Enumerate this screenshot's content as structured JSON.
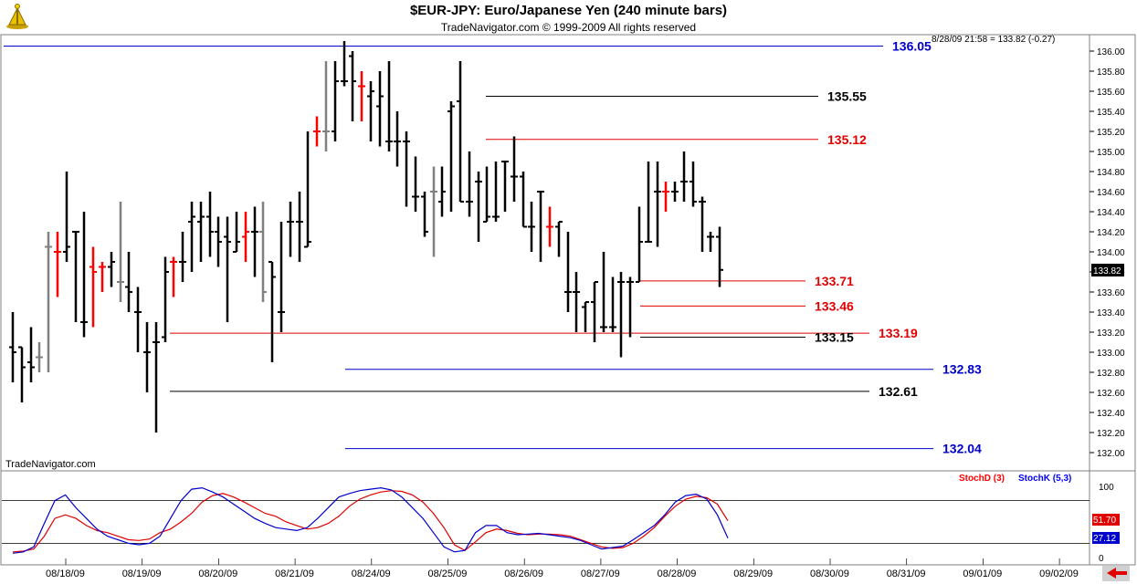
{
  "header": {
    "title": "$EUR-JPY:  Euro/Japanese Yen  (240 minute bars)",
    "subtitle": "TradeNavigator.com © 1999-2009 All rights reserved",
    "quote": "8/28/09 21:58 = 133.82 (-0.27)",
    "watermark": "TradeNavigator.com",
    "last_price": "133.82"
  },
  "colors": {
    "up_bar": "#000000",
    "red_bar": "#ff0000",
    "gray_bar": "#808080",
    "blue_line": "#0000cc",
    "red_line": "#e00000",
    "black_line": "#000000",
    "stoch_d": "#ff0000",
    "stoch_k": "#0000ff"
  },
  "chart_data": [
    {
      "type": "ohlc",
      "title": "$EUR-JPY:  Euro/Japanese Yen  (240 minute bars)",
      "y_ticks": [
        132.0,
        132.2,
        132.4,
        132.6,
        132.8,
        133.0,
        133.2,
        133.4,
        133.6,
        133.8,
        134.0,
        134.2,
        134.4,
        134.6,
        134.8,
        135.0,
        135.2,
        135.4,
        135.6,
        135.8,
        136.0
      ],
      "ylim": [
        131.9,
        136.2
      ],
      "x_labels": [
        "08/18/09",
        "08/19/09",
        "08/20/09",
        "08/21/09",
        "08/24/09",
        "08/25/09",
        "08/26/09",
        "08/27/09",
        "08/28/09",
        "08/29/09",
        "08/30/09",
        "08/31/09",
        "09/01/09",
        "09/02/09"
      ],
      "bars": [
        {
          "o": 133.05,
          "h": 133.4,
          "l": 132.7,
          "c": 133.0,
          "col": "k"
        },
        {
          "o": 133.05,
          "h": 133.05,
          "l": 132.5,
          "c": 132.85,
          "col": "k"
        },
        {
          "o": 132.9,
          "h": 133.25,
          "l": 132.7,
          "c": 132.85,
          "col": "k"
        },
        {
          "o": 132.95,
          "h": 133.1,
          "l": 132.8,
          "c": 132.95,
          "col": "g"
        },
        {
          "o": 134.05,
          "h": 134.2,
          "l": 132.8,
          "c": 134.05,
          "col": "g"
        },
        {
          "o": 134.0,
          "h": 134.2,
          "l": 133.55,
          "c": 134.0,
          "col": "r"
        },
        {
          "o": 134.0,
          "h": 134.8,
          "l": 133.9,
          "c": 134.05,
          "col": "k"
        },
        {
          "o": 134.2,
          "h": 134.2,
          "l": 133.3,
          "c": 134.2,
          "col": "k"
        },
        {
          "o": 133.3,
          "h": 134.4,
          "l": 133.15,
          "c": 133.3,
          "col": "k"
        },
        {
          "o": 133.85,
          "h": 134.05,
          "l": 133.25,
          "c": 133.8,
          "col": "r"
        },
        {
          "o": 133.85,
          "h": 133.9,
          "l": 133.6,
          "c": 133.85,
          "col": "r"
        },
        {
          "o": 133.85,
          "h": 134.0,
          "l": 133.65,
          "c": 133.9,
          "col": "k"
        },
        {
          "o": 133.7,
          "h": 134.5,
          "l": 133.5,
          "c": 133.7,
          "col": "g"
        },
        {
          "o": 133.65,
          "h": 134.0,
          "l": 133.4,
          "c": 133.6,
          "col": "k"
        },
        {
          "o": 133.4,
          "h": 133.65,
          "l": 133.0,
          "c": 133.4,
          "col": "k"
        },
        {
          "o": 133.0,
          "h": 133.3,
          "l": 132.6,
          "c": 133.0,
          "col": "k"
        },
        {
          "o": 133.1,
          "h": 133.3,
          "l": 132.2,
          "c": 133.1,
          "col": "k"
        },
        {
          "o": 133.15,
          "h": 133.95,
          "l": 133.1,
          "c": 133.8,
          "col": "k"
        },
        {
          "o": 133.9,
          "h": 133.95,
          "l": 133.55,
          "c": 133.9,
          "col": "r"
        },
        {
          "o": 133.9,
          "h": 134.2,
          "l": 133.7,
          "c": 133.9,
          "col": "k"
        },
        {
          "o": 134.3,
          "h": 134.5,
          "l": 133.8,
          "c": 134.35,
          "col": "k"
        },
        {
          "o": 134.3,
          "h": 134.5,
          "l": 133.9,
          "c": 134.35,
          "col": "k"
        },
        {
          "o": 134.35,
          "h": 134.6,
          "l": 133.95,
          "c": 134.2,
          "col": "k"
        },
        {
          "o": 134.2,
          "h": 134.35,
          "l": 133.85,
          "c": 134.1,
          "col": "k"
        },
        {
          "o": 134.15,
          "h": 134.35,
          "l": 133.3,
          "c": 134.1,
          "col": "k"
        },
        {
          "o": 134.0,
          "h": 134.4,
          "l": 134.0,
          "c": 134.1,
          "col": "k"
        },
        {
          "o": 134.15,
          "h": 134.4,
          "l": 133.9,
          "c": 134.2,
          "col": "r"
        },
        {
          "o": 134.2,
          "h": 134.45,
          "l": 133.75,
          "c": 134.2,
          "col": "k"
        },
        {
          "o": 134.2,
          "h": 134.5,
          "l": 133.5,
          "c": 133.6,
          "col": "g"
        },
        {
          "o": 133.9,
          "h": 133.9,
          "l": 132.9,
          "c": 133.75,
          "col": "k"
        },
        {
          "o": 133.4,
          "h": 134.3,
          "l": 133.2,
          "c": 133.4,
          "col": "k"
        },
        {
          "o": 134.3,
          "h": 134.5,
          "l": 133.95,
          "c": 134.3,
          "col": "k"
        },
        {
          "o": 134.3,
          "h": 134.6,
          "l": 133.9,
          "c": 134.3,
          "col": "k"
        },
        {
          "o": 134.05,
          "h": 135.2,
          "l": 134.05,
          "c": 134.1,
          "col": "k"
        },
        {
          "o": 135.2,
          "h": 135.35,
          "l": 135.05,
          "c": 135.2,
          "col": "r"
        },
        {
          "o": 135.2,
          "h": 135.9,
          "l": 135.0,
          "c": 135.2,
          "col": "g"
        },
        {
          "o": 135.2,
          "h": 135.9,
          "l": 135.1,
          "c": 135.7,
          "col": "k"
        },
        {
          "o": 135.7,
          "h": 136.1,
          "l": 135.65,
          "c": 135.7,
          "col": "k"
        },
        {
          "o": 135.95,
          "h": 136.0,
          "l": 135.3,
          "c": 135.7,
          "col": "k"
        },
        {
          "o": 135.65,
          "h": 135.8,
          "l": 135.3,
          "c": 135.65,
          "col": "r"
        },
        {
          "o": 135.55,
          "h": 135.7,
          "l": 135.1,
          "c": 135.6,
          "col": "k"
        },
        {
          "o": 135.45,
          "h": 135.8,
          "l": 135.05,
          "c": 135.55,
          "col": "k"
        },
        {
          "o": 135.1,
          "h": 135.9,
          "l": 135.0,
          "c": 135.1,
          "col": "k"
        },
        {
          "o": 135.1,
          "h": 135.4,
          "l": 134.85,
          "c": 135.1,
          "col": "k"
        },
        {
          "o": 135.1,
          "h": 135.2,
          "l": 134.45,
          "c": 135.1,
          "col": "k"
        },
        {
          "o": 134.55,
          "h": 134.95,
          "l": 134.4,
          "c": 134.55,
          "col": "k"
        },
        {
          "o": 134.55,
          "h": 134.6,
          "l": 134.15,
          "c": 134.2,
          "col": "k"
        },
        {
          "o": 134.6,
          "h": 134.85,
          "l": 133.95,
          "c": 134.6,
          "col": "g"
        },
        {
          "o": 134.5,
          "h": 134.85,
          "l": 134.35,
          "c": 134.6,
          "col": "k"
        },
        {
          "o": 135.4,
          "h": 135.5,
          "l": 134.4,
          "c": 135.45,
          "col": "k"
        },
        {
          "o": 135.5,
          "h": 135.9,
          "l": 134.5,
          "c": 134.5,
          "col": "k"
        },
        {
          "o": 134.5,
          "h": 135.0,
          "l": 134.35,
          "c": 134.5,
          "col": "k"
        },
        {
          "o": 134.7,
          "h": 134.8,
          "l": 134.1,
          "c": 134.7,
          "col": "k"
        },
        {
          "o": 134.3,
          "h": 134.85,
          "l": 134.3,
          "c": 134.35,
          "col": "k"
        },
        {
          "o": 134.35,
          "h": 134.9,
          "l": 134.3,
          "c": 134.35,
          "col": "k"
        },
        {
          "o": 134.9,
          "h": 134.9,
          "l": 134.4,
          "c": 134.9,
          "col": "k"
        },
        {
          "o": 134.75,
          "h": 135.15,
          "l": 134.5,
          "c": 134.75,
          "col": "k"
        },
        {
          "o": 134.75,
          "h": 134.8,
          "l": 134.25,
          "c": 134.25,
          "col": "k"
        },
        {
          "o": 134.25,
          "h": 134.5,
          "l": 134.0,
          "c": 134.25,
          "col": "k"
        },
        {
          "o": 134.6,
          "h": 134.6,
          "l": 133.9,
          "c": 134.6,
          "col": "k"
        },
        {
          "o": 134.25,
          "h": 134.45,
          "l": 134.05,
          "c": 134.25,
          "col": "r"
        },
        {
          "o": 134.25,
          "h": 134.3,
          "l": 133.95,
          "c": 134.3,
          "col": "k"
        },
        {
          "o": 133.6,
          "h": 134.2,
          "l": 133.4,
          "c": 133.6,
          "col": "k"
        },
        {
          "o": 133.6,
          "h": 133.8,
          "l": 133.2,
          "c": 133.6,
          "col": "k"
        },
        {
          "o": 133.45,
          "h": 133.5,
          "l": 133.2,
          "c": 133.5,
          "col": "k"
        },
        {
          "o": 133.5,
          "h": 133.7,
          "l": 133.1,
          "c": 133.7,
          "col": "k"
        },
        {
          "o": 133.25,
          "h": 134.0,
          "l": 133.2,
          "c": 133.25,
          "col": "k"
        },
        {
          "o": 133.25,
          "h": 133.75,
          "l": 133.2,
          "c": 133.25,
          "col": "k"
        },
        {
          "o": 133.7,
          "h": 133.8,
          "l": 132.95,
          "c": 133.7,
          "col": "k"
        },
        {
          "o": 133.7,
          "h": 133.75,
          "l": 133.15,
          "c": 133.7,
          "col": "k"
        },
        {
          "o": 133.7,
          "h": 134.45,
          "l": 133.7,
          "c": 134.1,
          "col": "k"
        },
        {
          "o": 134.1,
          "h": 134.9,
          "l": 134.1,
          "c": 134.1,
          "col": "k"
        },
        {
          "o": 134.6,
          "h": 134.9,
          "l": 134.05,
          "c": 134.6,
          "col": "k"
        },
        {
          "o": 134.6,
          "h": 134.7,
          "l": 134.4,
          "c": 134.6,
          "col": "r"
        },
        {
          "o": 134.6,
          "h": 134.7,
          "l": 134.5,
          "c": 134.6,
          "col": "k"
        },
        {
          "o": 134.7,
          "h": 135.0,
          "l": 134.5,
          "c": 134.7,
          "col": "k"
        },
        {
          "o": 134.7,
          "h": 134.9,
          "l": 134.45,
          "c": 134.5,
          "col": "k"
        },
        {
          "o": 134.5,
          "h": 134.55,
          "l": 134.0,
          "c": 134.5,
          "col": "k"
        },
        {
          "o": 134.15,
          "h": 134.2,
          "l": 134.0,
          "c": 134.15,
          "col": "k"
        },
        {
          "o": 134.15,
          "h": 134.25,
          "l": 133.65,
          "c": 133.82,
          "col": "k"
        }
      ],
      "levels": [
        {
          "value": 136.05,
          "label": "136.05",
          "color": "blue"
        },
        {
          "value": 135.55,
          "label": "135.55",
          "color": "black"
        },
        {
          "value": 135.12,
          "label": "135.12",
          "color": "red"
        },
        {
          "value": 133.71,
          "label": "133.71",
          "color": "red"
        },
        {
          "value": 133.46,
          "label": "133.46",
          "color": "red"
        },
        {
          "value": 133.19,
          "label": "133.19",
          "color": "red"
        },
        {
          "value": 133.15,
          "label": "133.15",
          "color": "black"
        },
        {
          "value": 132.83,
          "label": "132.83",
          "color": "blue"
        },
        {
          "value": 132.61,
          "label": "132.61",
          "color": "black"
        },
        {
          "value": 132.04,
          "label": "132.04",
          "color": "blue"
        }
      ]
    },
    {
      "type": "line",
      "title": "",
      "ylim": [
        0,
        100
      ],
      "y_ticks": [
        0,
        100
      ],
      "reference_lines": [
        80,
        20
      ],
      "series": [
        {
          "name": "StochD (3)",
          "color": "red",
          "last": "51.70",
          "values": [
            8,
            9,
            12,
            30,
            55,
            60,
            55,
            45,
            38,
            35,
            30,
            25,
            24,
            26,
            35,
            40,
            50,
            62,
            78,
            87,
            90,
            85,
            78,
            70,
            62,
            58,
            50,
            45,
            40,
            42,
            48,
            58,
            72,
            82,
            88,
            92,
            94,
            93,
            88,
            78,
            62,
            42,
            18,
            10,
            22,
            35,
            40,
            38,
            34,
            32,
            33,
            33,
            32,
            30,
            25,
            20,
            15,
            13,
            14,
            20,
            30,
            42,
            58,
            72,
            82,
            86,
            84,
            75,
            51.7
          ]
        },
        {
          "name": "StochK (5,3)",
          "color": "blue",
          "last": "27.12",
          "values": [
            6,
            8,
            15,
            48,
            80,
            88,
            70,
            55,
            40,
            30,
            25,
            20,
            18,
            20,
            30,
            55,
            80,
            96,
            98,
            92,
            85,
            75,
            65,
            55,
            48,
            42,
            40,
            38,
            42,
            55,
            70,
            85,
            90,
            94,
            96,
            98,
            95,
            85,
            70,
            55,
            35,
            15,
            8,
            10,
            35,
            45,
            45,
            35,
            32,
            33,
            34,
            32,
            30,
            28,
            24,
            18,
            12,
            14,
            16,
            25,
            35,
            45,
            60,
            78,
            87,
            89,
            82,
            60,
            27.12
          ]
        }
      ]
    }
  ]
}
